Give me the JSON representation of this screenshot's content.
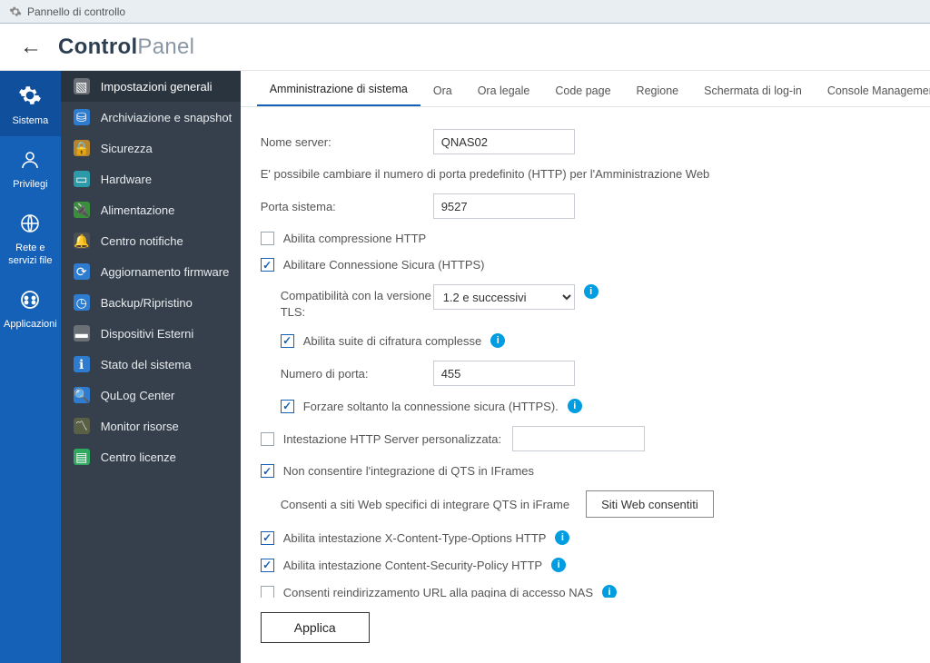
{
  "window": {
    "title": "Pannello di controllo"
  },
  "header": {
    "brand_bold": "Control",
    "brand_light": "Panel"
  },
  "rail": {
    "items": [
      {
        "label": "Sistema",
        "active": true
      },
      {
        "label": "Privilegi",
        "active": false
      },
      {
        "label": "Rete e servizi file",
        "active": false
      },
      {
        "label": "Applicazioni",
        "active": false
      }
    ]
  },
  "sidebar": {
    "items": [
      {
        "label": "Impostazioni generali",
        "active": true,
        "icon_bg": "#6a7076",
        "glyph": "▧"
      },
      {
        "label": "Archiviazione e snapshot",
        "active": false,
        "icon_bg": "#2d7ccf",
        "glyph": "⛁"
      },
      {
        "label": "Sicurezza",
        "active": false,
        "icon_bg": "#b6862e",
        "glyph": "🔒"
      },
      {
        "label": "Hardware",
        "active": false,
        "icon_bg": "#2c9aa8",
        "glyph": "▭"
      },
      {
        "label": "Alimentazione",
        "active": false,
        "icon_bg": "#3a8f3a",
        "glyph": "🔌"
      },
      {
        "label": "Centro notifiche",
        "active": false,
        "icon_bg": "#4a5056",
        "glyph": "🔔"
      },
      {
        "label": "Aggiornamento firmware",
        "active": false,
        "icon_bg": "#2d7ccf",
        "glyph": "⟳"
      },
      {
        "label": "Backup/Ripristino",
        "active": false,
        "icon_bg": "#2d7ccf",
        "glyph": "◷"
      },
      {
        "label": "Dispositivi Esterni",
        "active": false,
        "icon_bg": "#6a7076",
        "glyph": "▬"
      },
      {
        "label": "Stato del sistema",
        "active": false,
        "icon_bg": "#2d7ccf",
        "glyph": "ℹ"
      },
      {
        "label": "QuLog Center",
        "active": false,
        "icon_bg": "#2d7ccf",
        "glyph": "🔍"
      },
      {
        "label": "Monitor risorse",
        "active": false,
        "icon_bg": "#5a6046",
        "glyph": "〽"
      },
      {
        "label": "Centro licenze",
        "active": false,
        "icon_bg": "#2fa860",
        "glyph": "▤"
      }
    ]
  },
  "tabs": {
    "items": [
      {
        "label": "Amministrazione di sistema",
        "active": true
      },
      {
        "label": "Ora",
        "active": false
      },
      {
        "label": "Ora legale",
        "active": false
      },
      {
        "label": "Code page",
        "active": false
      },
      {
        "label": "Regione",
        "active": false
      },
      {
        "label": "Schermata di log-in",
        "active": false
      },
      {
        "label": "Console Management",
        "active": false
      }
    ]
  },
  "form": {
    "server_name_label": "Nome server:",
    "server_name_value": "QNAS02",
    "port_note": "E' possibile cambiare il numero di porta predefinito (HTTP) per l'Amministrazione Web",
    "system_port_label": "Porta sistema:",
    "system_port_value": "9527",
    "http_compress_label": "Abilita compressione HTTP",
    "https_enable_label": "Abilitare Connessione Sicura (HTTPS)",
    "tls_compat_label": "Compatibilità con la versione TLS:",
    "tls_compat_value": "1.2 e successivi",
    "cipher_suite_label": "Abilita suite di cifratura complesse",
    "https_port_label": "Numero di porta:",
    "https_port_value": "455",
    "force_https_label": "Forzare soltanto la connessione sicura (HTTPS).",
    "custom_header_label": "Intestazione HTTP Server personalizzata:",
    "custom_header_value": "",
    "iframe_disallow_label": "Non consentire l'integrazione di QTS in IFrames",
    "iframe_allow_text": "Consenti a siti Web specifici di integrare QTS in iFrame",
    "allowed_sites_btn": "Siti Web consentiti",
    "xcto_label": "Abilita intestazione X-Content-Type-Options HTTP",
    "csp_label": "Abilita intestazione Content-Security-Policy HTTP",
    "nas_redirect_label": "Consenti reindirizzamento URL alla pagina di accesso NAS",
    "apply_btn": "Applica"
  },
  "colors": {
    "rail_bg": "#1661b8",
    "rail_active": "#0f4f9b",
    "sidebar_bg": "#35404c",
    "accent": "#1661b8",
    "info_bg": "#009de0"
  }
}
